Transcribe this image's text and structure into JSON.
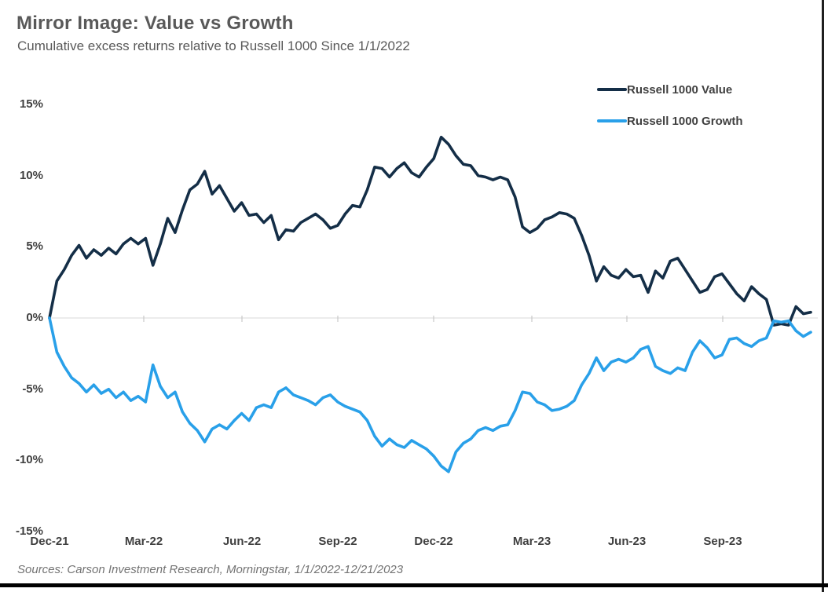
{
  "header": {
    "title": "Mirror Image: Value vs Growth",
    "subtitle": "Cumulative excess returns relative to Russell 1000 Since 1/1/2022"
  },
  "footer": {
    "source": "Sources: Carson Investment Research, Morningstar, 1/1/2022-12/21/2023"
  },
  "chart_data": {
    "type": "line",
    "title": "Mirror Image: Value vs Growth",
    "subtitle": "Cumulative excess returns relative to Russell 1000 Since 1/1/2022",
    "y_unit": "percent",
    "ylim": [
      -15,
      15
    ],
    "y_tick_values": [
      15,
      10,
      5,
      0,
      -5,
      -10,
      -15
    ],
    "y_tick_labels": [
      "15%",
      "10%",
      "5%",
      "0%",
      "-5%",
      "-10%",
      "-15%"
    ],
    "x_tick_labels": [
      "Dec-21",
      "Mar-22",
      "Jun-22",
      "Sep-22",
      "Dec-22",
      "Mar-23",
      "Jun-23",
      "Sep-23"
    ],
    "x_start": "2021-12-31",
    "x_end": "2023-12-21",
    "sampling": "weekly",
    "grid": "zero-line-only",
    "zero_line_color": "#d9d9d9",
    "tick_color": "#bfbfbf",
    "legend_position": "top-right",
    "series": [
      {
        "name": "Russell 1000 Value",
        "color": "#142e47",
        "values": [
          0.0,
          2.6,
          3.4,
          4.4,
          5.1,
          4.2,
          4.8,
          4.4,
          4.9,
          4.5,
          5.2,
          5.6,
          5.2,
          5.6,
          3.7,
          5.2,
          7.0,
          6.0,
          7.6,
          9.0,
          9.4,
          10.3,
          8.7,
          9.3,
          8.4,
          7.5,
          8.1,
          7.2,
          7.3,
          6.7,
          7.2,
          5.5,
          6.2,
          6.1,
          6.7,
          7.0,
          7.3,
          6.9,
          6.3,
          6.5,
          7.3,
          7.9,
          7.8,
          9.0,
          10.6,
          10.5,
          9.9,
          10.5,
          10.9,
          10.2,
          9.9,
          10.6,
          11.2,
          12.7,
          12.2,
          11.4,
          10.8,
          10.7,
          10.0,
          9.9,
          9.7,
          9.9,
          9.7,
          8.5,
          6.4,
          6.0,
          6.3,
          6.9,
          7.1,
          7.4,
          7.3,
          7.0,
          5.8,
          4.4,
          2.6,
          3.6,
          3.0,
          2.8,
          3.4,
          2.9,
          3.0,
          1.8,
          3.3,
          2.8,
          4.0,
          4.2,
          3.4,
          2.6,
          1.8,
          2.0,
          2.9,
          3.1,
          2.4,
          1.7,
          1.2,
          2.2,
          1.7,
          1.3,
          -0.5,
          -0.4,
          -0.5,
          0.8,
          0.3,
          0.4
        ]
      },
      {
        "name": "Russell 1000 Growth",
        "color": "#29a0e9",
        "values": [
          0.0,
          -2.4,
          -3.4,
          -4.2,
          -4.6,
          -5.2,
          -4.7,
          -5.3,
          -5.0,
          -5.6,
          -5.2,
          -5.8,
          -5.5,
          -5.9,
          -3.3,
          -4.8,
          -5.6,
          -5.2,
          -6.6,
          -7.4,
          -7.9,
          -8.7,
          -7.8,
          -7.5,
          -7.8,
          -7.2,
          -6.7,
          -7.2,
          -6.3,
          -6.1,
          -6.3,
          -5.2,
          -4.9,
          -5.4,
          -5.6,
          -5.8,
          -6.1,
          -5.6,
          -5.4,
          -5.9,
          -6.2,
          -6.4,
          -6.6,
          -7.2,
          -8.3,
          -9.0,
          -8.5,
          -8.9,
          -9.1,
          -8.6,
          -8.9,
          -9.2,
          -9.7,
          -10.4,
          -10.8,
          -9.4,
          -8.8,
          -8.5,
          -7.9,
          -7.7,
          -7.9,
          -7.6,
          -7.5,
          -6.5,
          -5.2,
          -5.3,
          -5.9,
          -6.1,
          -6.5,
          -6.4,
          -6.2,
          -5.8,
          -4.7,
          -3.9,
          -2.8,
          -3.7,
          -3.1,
          -2.9,
          -3.1,
          -2.8,
          -2.2,
          -2.0,
          -3.4,
          -3.7,
          -3.9,
          -3.5,
          -3.7,
          -2.4,
          -1.6,
          -2.1,
          -2.8,
          -2.6,
          -1.5,
          -1.4,
          -1.8,
          -2.0,
          -1.6,
          -1.4,
          -0.2,
          -0.3,
          -0.2,
          -0.9,
          -1.3,
          -1.0
        ]
      }
    ]
  }
}
